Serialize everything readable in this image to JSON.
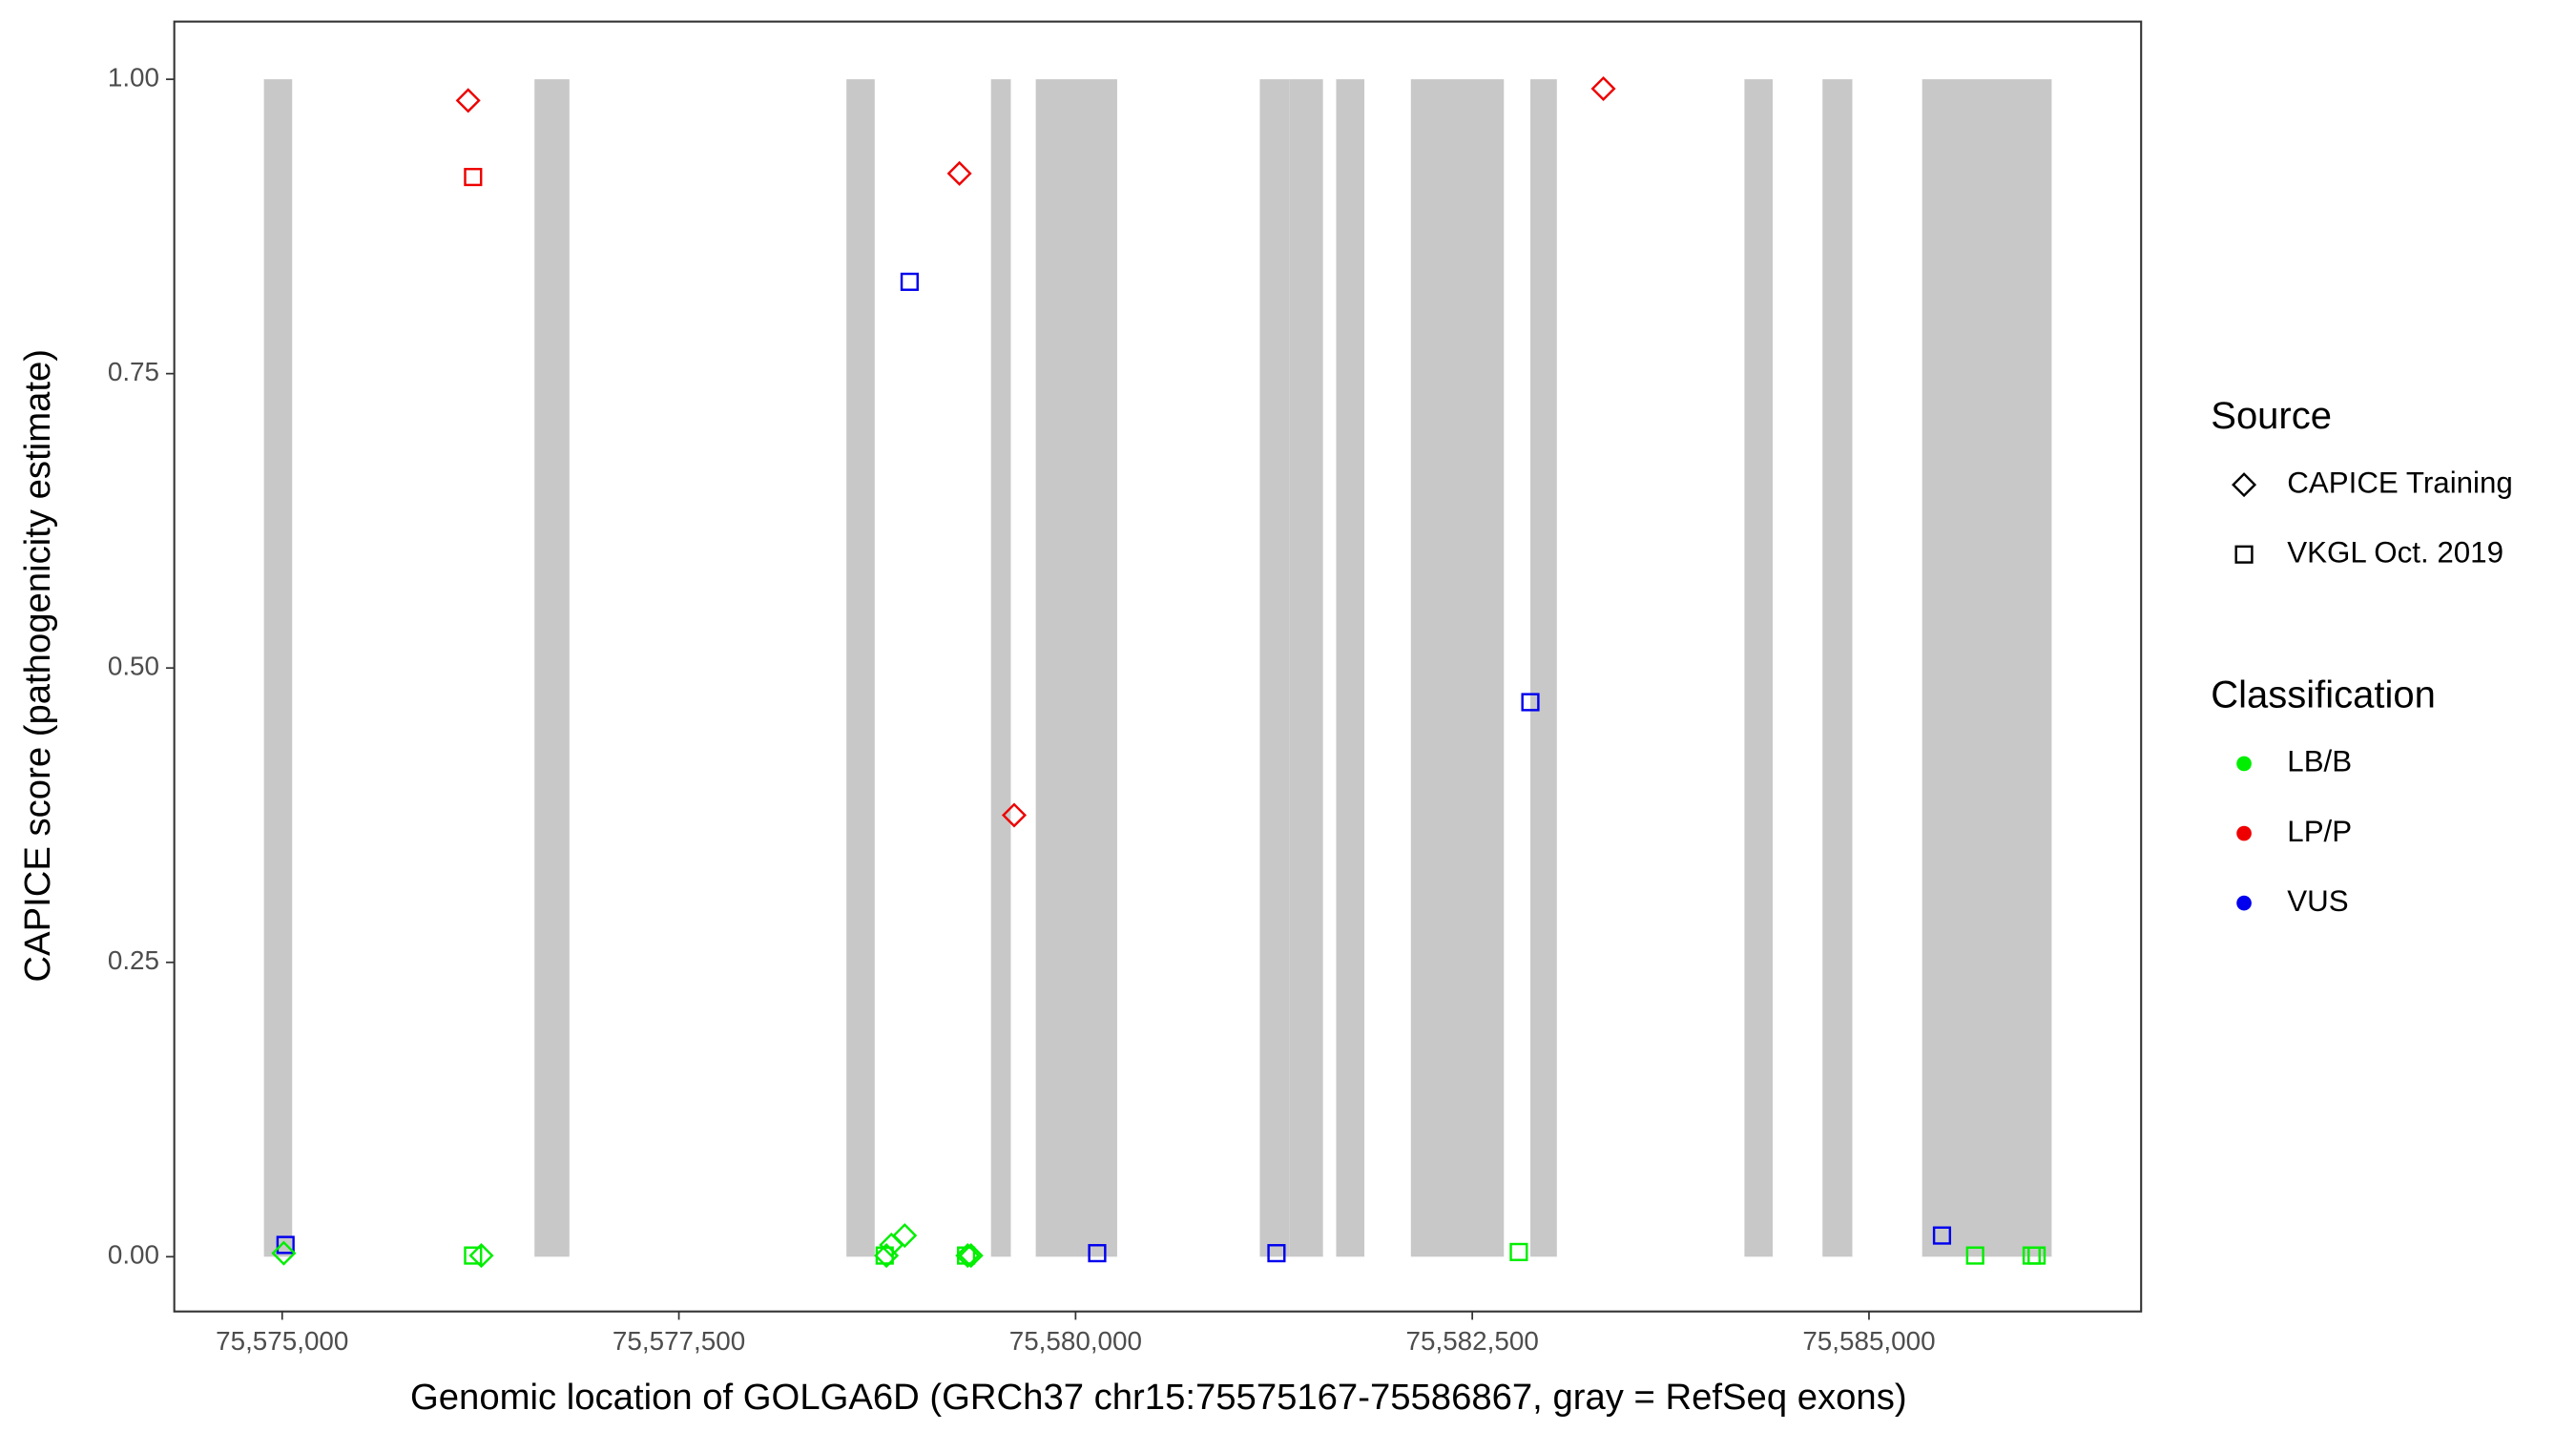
{
  "chart_data": {
    "type": "scatter",
    "x_label": "Genomic location of GOLGA6D (GRCh37 chr15:75575167-75586867, gray = RefSeq exons)",
    "y_label": "CAPICE score (pathogenicity estimate)",
    "xlim": [
      75574320,
      75586715
    ],
    "ylim": [
      -0.0465,
      1.049
    ],
    "xticks": [
      {
        "value": 75575000,
        "label": "75,575,000"
      },
      {
        "value": 75577500,
        "label": "75,577,500"
      },
      {
        "value": 75580000,
        "label": "75,580,000"
      },
      {
        "value": 75582500,
        "label": "75,582,500"
      },
      {
        "value": 75585000,
        "label": "75,585,000"
      }
    ],
    "yticks": [
      {
        "value": 0,
        "label": "0.00"
      },
      {
        "value": 0.25,
        "label": "0.25"
      },
      {
        "value": 0.5,
        "label": "0.50"
      },
      {
        "value": 0.75,
        "label": "0.75"
      },
      {
        "value": 1,
        "label": "1.00"
      }
    ],
    "exon_color": "#c8c8c8",
    "exons": [
      [
        75574885,
        75575063
      ],
      [
        75576590,
        75576810
      ],
      [
        75578556,
        75578734
      ],
      [
        75579467,
        75579592
      ],
      [
        75579749,
        75580262
      ],
      [
        75581161,
        75581349
      ],
      [
        75581349,
        75581559
      ],
      [
        75581642,
        75581820
      ],
      [
        75582113,
        75582699
      ],
      [
        75582866,
        75583033
      ],
      [
        75584215,
        75584393
      ],
      [
        75584707,
        75584895
      ],
      [
        75585335,
        75586151
      ]
    ],
    "legend_source": {
      "title": "Source",
      "items": [
        {
          "name": "CAPICE Training",
          "shape": "diamond"
        },
        {
          "name": "VKGL Oct. 2019",
          "shape": "square"
        }
      ]
    },
    "legend_classification": {
      "title": "Classification",
      "items": [
        {
          "name": "LB/B",
          "color": "#00ee00"
        },
        {
          "name": "LP/P",
          "color": "#ee0000"
        },
        {
          "name": "VUS",
          "color": "#0000ee"
        }
      ]
    },
    "series": [
      {
        "source": 0,
        "classification": 1,
        "x": [
          75576172,
          75579268,
          75579613,
          75583326
        ],
        "values": [
          0.982,
          0.92,
          0.375,
          0.992
        ]
      },
      {
        "source": 1,
        "classification": 1,
        "x": [
          75576203
        ],
        "values": [
          0.917
        ]
      },
      {
        "source": 1,
        "classification": 2,
        "x": [
          75575021,
          75578954,
          75580136,
          75581266,
          75582866,
          75585460
        ],
        "values": [
          0.01,
          0.828,
          0.003,
          0.003,
          0.471,
          0.018
        ]
      },
      {
        "source": 0,
        "classification": 0,
        "x": [
          75575010,
          75576255,
          75578808,
          75578839,
          75578923,
          75579320,
          75579341
        ],
        "values": [
          0.003,
          0.001,
          0.001,
          0.01,
          0.018,
          0.001,
          0.001
        ]
      },
      {
        "source": 1,
        "classification": 0,
        "x": [
          75576203,
          75578797,
          75579310,
          75582793,
          75585669,
          75586025,
          75586056
        ],
        "values": [
          0.001,
          0.001,
          0.001,
          0.004,
          0.001,
          0.001,
          0.001
        ]
      }
    ]
  }
}
